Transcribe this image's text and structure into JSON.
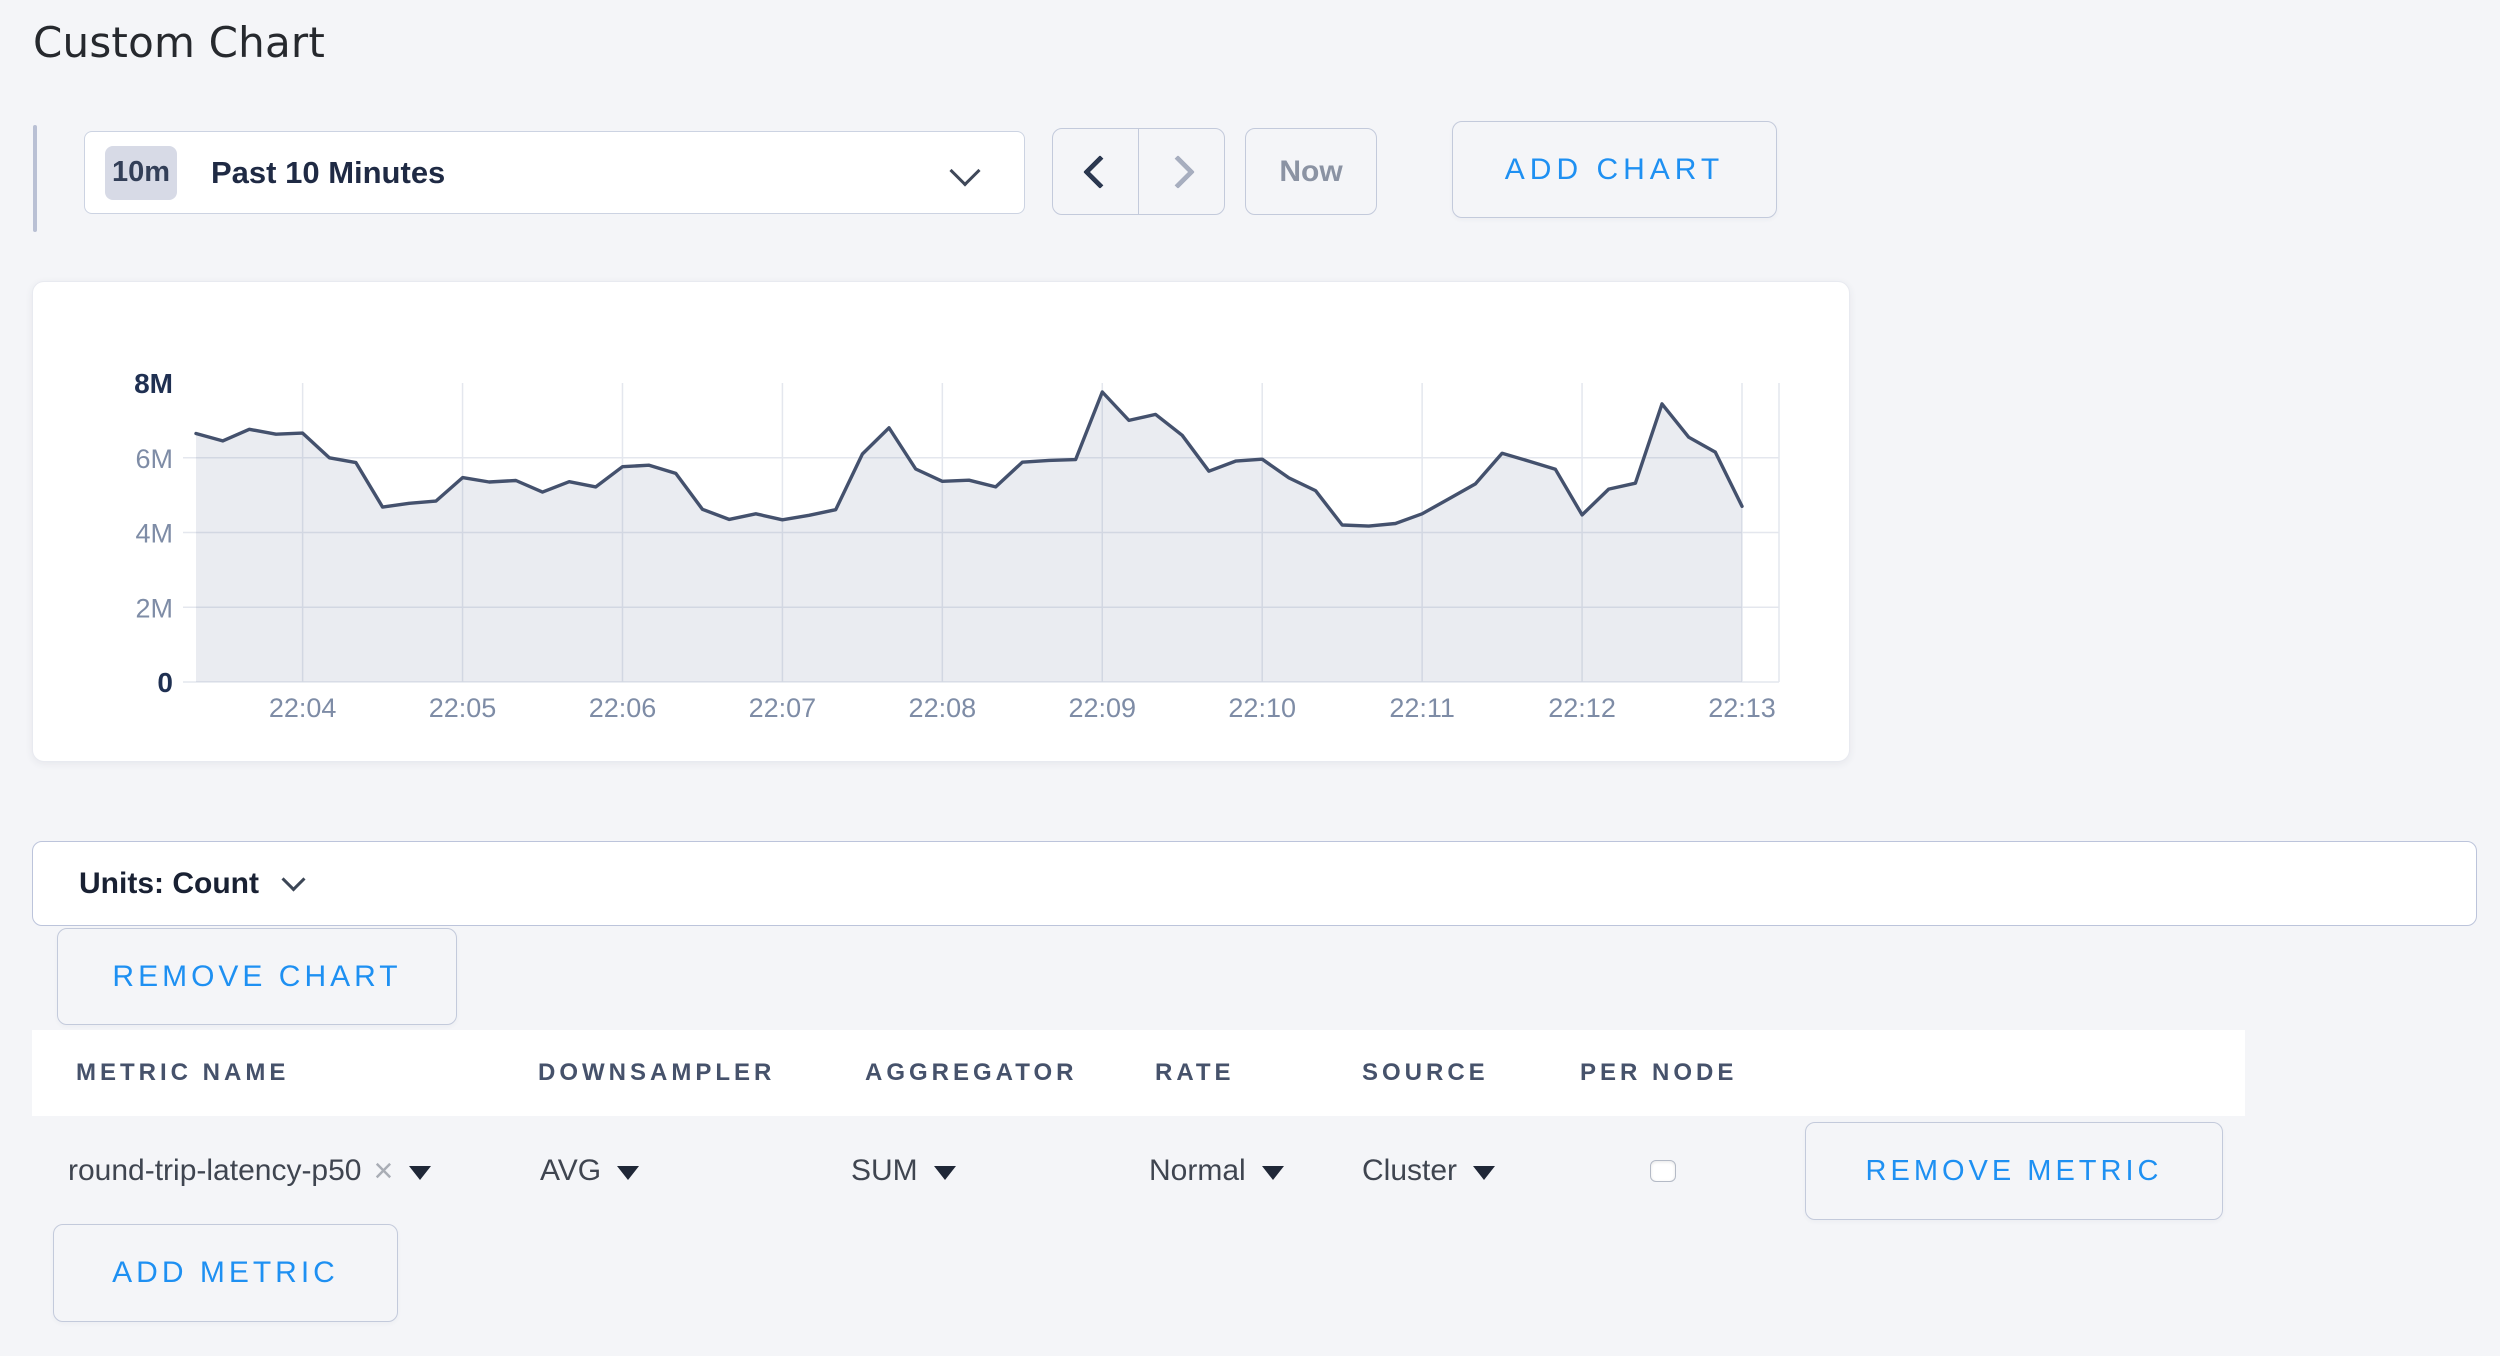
{
  "page": {
    "title": "Custom Chart"
  },
  "colors": {
    "accent_blue": "#1e90f2",
    "page_background": "#f4f5f8",
    "series_line": "#44516d",
    "series_fill": "#e9ebf0",
    "grid": "#e4e7ee"
  },
  "icons": {
    "time_selector": "chevron-down-icon",
    "prev": "chevron-left-icon",
    "next": "chevron-right-icon",
    "units": "chevron-down-icon",
    "dropdowns": "caret-down-icon",
    "metric_remove": "x-icon"
  },
  "toolbar": {
    "time_selector": {
      "badge": "10m",
      "label": "Past 10 Minutes"
    },
    "now_button": "Now",
    "add_chart_button": "ADD CHART"
  },
  "chart_card": {
    "units_label": "Units: Count",
    "remove_chart_button": "REMOVE CHART"
  },
  "chart_data": {
    "type": "area",
    "title": "",
    "legend": false,
    "grid": true,
    "ylim_millions": [
      0,
      8
    ],
    "x_range_seconds": [
      0,
      580
    ],
    "series": [
      {
        "name": "round-trip-latency-p50",
        "unit": "count",
        "start_time": "22:03:20",
        "interval_seconds": 10,
        "values_millions": [
          6.65,
          6.45,
          6.76,
          6.63,
          6.66,
          6.0,
          5.87,
          4.68,
          4.78,
          4.84,
          5.47,
          5.35,
          5.39,
          5.08,
          5.36,
          5.22,
          5.76,
          5.8,
          5.58,
          4.62,
          4.35,
          4.5,
          4.34,
          4.46,
          4.61,
          6.1,
          6.8,
          5.7,
          5.37,
          5.4,
          5.22,
          5.88,
          5.93,
          5.95,
          7.76,
          7.0,
          7.16,
          6.6,
          5.64,
          5.91,
          5.96,
          5.46,
          5.12,
          4.2,
          4.17,
          4.24,
          4.5,
          4.9,
          5.3,
          6.12,
          5.91,
          5.69,
          4.47,
          5.16,
          5.32,
          7.44,
          6.55,
          6.15,
          4.7
        ]
      }
    ],
    "xticks": [
      {
        "t": 40,
        "label": "22:04"
      },
      {
        "t": 100,
        "label": "22:05"
      },
      {
        "t": 160,
        "label": "22:06"
      },
      {
        "t": 220,
        "label": "22:07"
      },
      {
        "t": 280,
        "label": "22:08"
      },
      {
        "t": 340,
        "label": "22:09"
      },
      {
        "t": 400,
        "label": "22:10"
      },
      {
        "t": 460,
        "label": "22:11"
      },
      {
        "t": 520,
        "label": "22:12"
      },
      {
        "t": 580,
        "label": "22:13"
      }
    ],
    "yticks": [
      {
        "v": 0,
        "label": "0",
        "emphasis": true
      },
      {
        "v": 2,
        "label": "2M",
        "emphasis": false
      },
      {
        "v": 4,
        "label": "4M",
        "emphasis": false
      },
      {
        "v": 6,
        "label": "6M",
        "emphasis": false
      },
      {
        "v": 8,
        "label": "8M",
        "emphasis": true
      }
    ]
  },
  "metrics_table": {
    "columns": [
      "METRIC NAME",
      "DOWNSAMPLER",
      "AGGREGATOR",
      "RATE",
      "SOURCE",
      "PER NODE"
    ],
    "row": {
      "metric_name": "round-trip-latency-p50",
      "downsampler": "AVG",
      "aggregator": "SUM",
      "rate": "Normal",
      "source": "Cluster",
      "per_node_checked": false,
      "remove_metric_button": "REMOVE METRIC"
    },
    "add_metric_button": "ADD METRIC"
  }
}
